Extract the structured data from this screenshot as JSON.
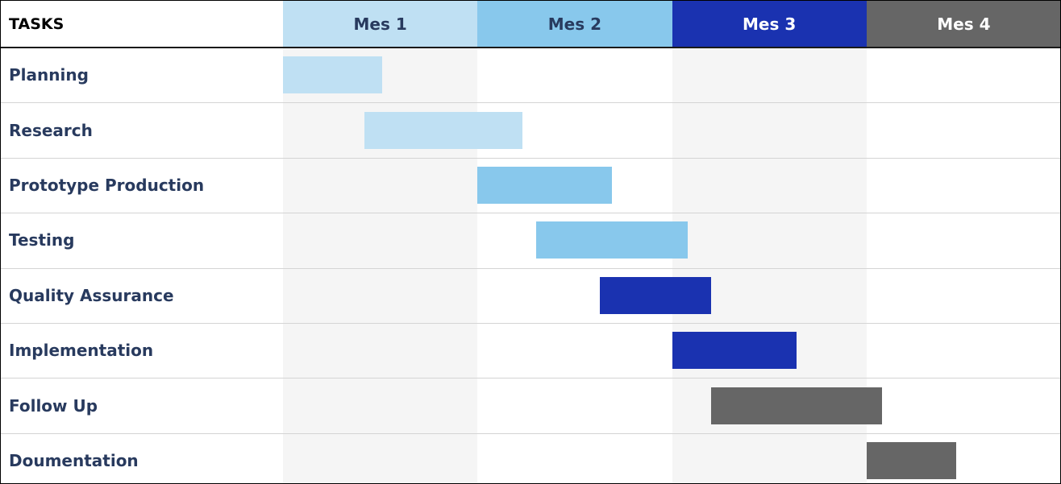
{
  "chart_data": {
    "type": "gantt",
    "tasks_header": "TASKS",
    "months": [
      {
        "label": "Mes 1",
        "header_color": "#bfe0f3",
        "text_color": "#283a5e",
        "shaded": true
      },
      {
        "label": "Mes 2",
        "header_color": "#88c8ec",
        "text_color": "#283a5e",
        "shaded": false
      },
      {
        "label": "Mes 3",
        "header_color": "#1a32b0",
        "text_color": "#ffffff",
        "shaded": true
      },
      {
        "label": "Mes 4",
        "header_color": "#666666",
        "text_color": "#ffffff",
        "shaded": false
      }
    ],
    "x_unit": "months",
    "xlim": [
      0,
      4
    ],
    "tasks": [
      {
        "name": "Planning",
        "start": 0.0,
        "end": 0.51,
        "color": "#bfe0f3"
      },
      {
        "name": "Research",
        "start": 0.42,
        "end": 1.23,
        "color": "#bfe0f3"
      },
      {
        "name": "Prototype Production",
        "start": 1.0,
        "end": 1.69,
        "color": "#88c8ec"
      },
      {
        "name": "Testing",
        "start": 1.3,
        "end": 2.08,
        "color": "#88c8ec"
      },
      {
        "name": "Quality Assurance",
        "start": 1.63,
        "end": 2.2,
        "color": "#1a32b0"
      },
      {
        "name": "Implementation",
        "start": 2.0,
        "end": 2.64,
        "color": "#1a32b0"
      },
      {
        "name": "Follow Up",
        "start": 2.2,
        "end": 3.08,
        "color": "#666666"
      },
      {
        "name": "Doumentation",
        "start": 3.0,
        "end": 3.46,
        "color": "#666666"
      }
    ],
    "shade_color": "#f5f5f5",
    "label_color": "#283a5e"
  }
}
